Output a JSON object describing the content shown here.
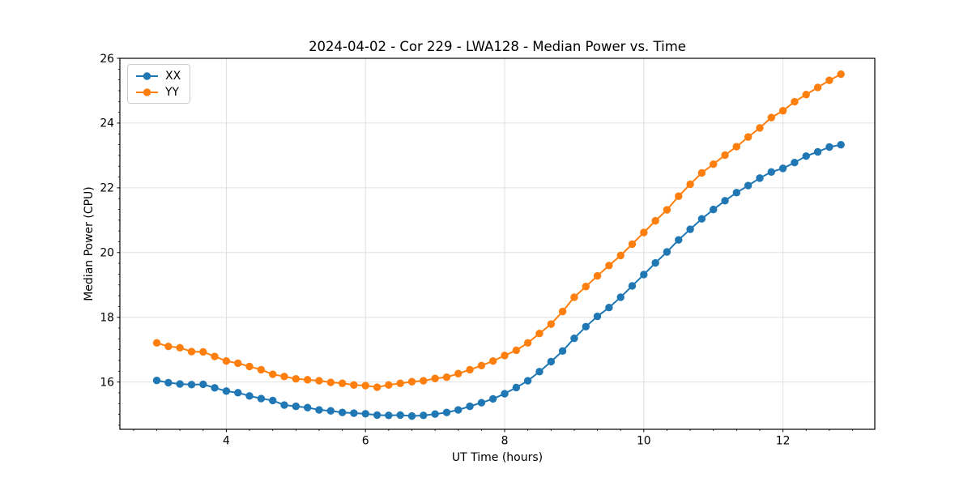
{
  "figure": {
    "title": "2024-04-02 - Cor 229 - LWA128 - Median Power vs. Time"
  },
  "chart_data": {
    "type": "line",
    "title": "2024-04-02 - Cor 229 - LWA128 - Median Power vs. Time",
    "xlabel": "UT Time (hours)",
    "ylabel": "Median Power (CPU)",
    "xlim": [
      2.47,
      13.32
    ],
    "ylim": [
      14.54,
      26.0
    ],
    "xticks": [
      4,
      6,
      8,
      10,
      12
    ],
    "yticks": [
      16,
      18,
      20,
      22,
      24,
      26
    ],
    "minor_tick_step": 0.3333,
    "grid": true,
    "legend": {
      "position": "upper left",
      "entries": [
        "XX",
        "YY"
      ]
    },
    "x": [
      3.0,
      3.167,
      3.333,
      3.5,
      3.667,
      3.833,
      4.0,
      4.167,
      4.333,
      4.5,
      4.667,
      4.833,
      5.0,
      5.167,
      5.333,
      5.5,
      5.667,
      5.833,
      6.0,
      6.167,
      6.333,
      6.5,
      6.667,
      6.833,
      7.0,
      7.167,
      7.333,
      7.5,
      7.667,
      7.833,
      8.0,
      8.167,
      8.333,
      8.5,
      8.667,
      8.833,
      9.0,
      9.167,
      9.333,
      9.5,
      9.667,
      9.833,
      10.0,
      10.167,
      10.333,
      10.5,
      10.667,
      10.833,
      11.0,
      11.167,
      11.333,
      11.5,
      11.667,
      11.833,
      12.0,
      12.167,
      12.333,
      12.5,
      12.667,
      12.833
    ],
    "series": [
      {
        "name": "XX",
        "color": "#1f77b4",
        "values": [
          16.05,
          15.98,
          15.94,
          15.92,
          15.93,
          15.82,
          15.72,
          15.67,
          15.57,
          15.49,
          15.43,
          15.29,
          15.25,
          15.21,
          15.14,
          15.11,
          15.06,
          15.04,
          15.02,
          14.98,
          14.97,
          14.98,
          14.95,
          14.97,
          15.01,
          15.06,
          15.14,
          15.25,
          15.36,
          15.48,
          15.64,
          15.83,
          16.04,
          16.32,
          16.63,
          16.96,
          17.35,
          17.71,
          18.03,
          18.3,
          18.62,
          18.97,
          19.32,
          19.68,
          20.02,
          20.39,
          20.72,
          21.04,
          21.33,
          21.6,
          21.85,
          22.07,
          22.3,
          22.49,
          22.6,
          22.78,
          22.98,
          23.11,
          23.26,
          23.33
        ]
      },
      {
        "name": "YY",
        "color": "#ff7f0e",
        "values": [
          17.21,
          17.1,
          17.06,
          16.94,
          16.93,
          16.79,
          16.65,
          16.58,
          16.48,
          16.38,
          16.24,
          16.17,
          16.1,
          16.07,
          16.04,
          15.99,
          15.96,
          15.91,
          15.89,
          15.84,
          15.91,
          15.96,
          16.01,
          16.04,
          16.11,
          16.15,
          16.26,
          16.38,
          16.51,
          16.65,
          16.82,
          16.98,
          17.21,
          17.5,
          17.79,
          18.18,
          18.62,
          18.95,
          19.28,
          19.6,
          19.91,
          20.26,
          20.62,
          20.98,
          21.32,
          21.74,
          22.11,
          22.46,
          22.73,
          23.01,
          23.27,
          23.57,
          23.85,
          24.17,
          24.38,
          24.66,
          24.88,
          25.1,
          25.32,
          25.51
        ]
      }
    ]
  },
  "colors": {
    "series_xx": "#1f77b4",
    "series_yy": "#ff7f0e",
    "grid": "#e0e0e0",
    "spine": "#000000",
    "background": "#ffffff"
  }
}
